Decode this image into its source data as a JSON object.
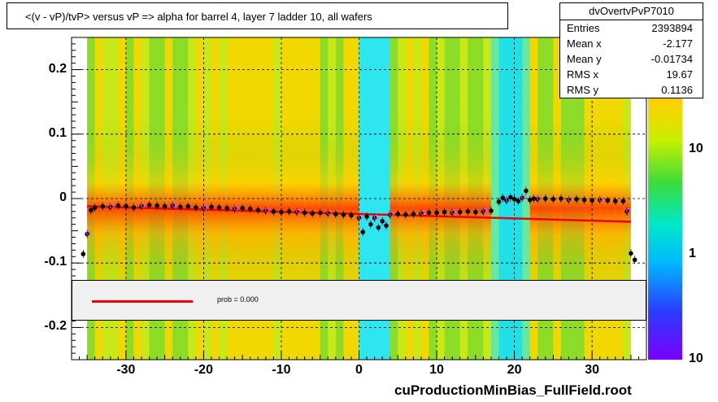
{
  "title": "<(v - vP)/tvP> versus   vP => alpha for barrel 4, layer 7 ladder 10, all wafers",
  "stats": {
    "name": "dvOvertvPvP7010",
    "rows": [
      {
        "key": "Entries",
        "value": "2393894"
      },
      {
        "key": "Mean x",
        "value": "-2.177"
      },
      {
        "key": "Mean y",
        "value": "-0.01734"
      },
      {
        "key": "RMS x",
        "value": "19.67"
      },
      {
        "key": "RMS y",
        "value": "0.1136"
      }
    ]
  },
  "fit": {
    "label": "prob = 0.000",
    "color": "#ee0000"
  },
  "footer": "cuProductionMinBias_FullField.root",
  "colors": {
    "fit_line": "#ee0000",
    "points": "#000000",
    "open_points": "#ff44ff"
  },
  "chart_data": {
    "type": "heatmap",
    "title": "<(v - vP)/tvP> versus   vP => alpha for barrel 4, layer 7 ladder 10, all wafers",
    "xlabel": "",
    "ylabel": "",
    "xlim": [
      -37,
      37
    ],
    "ylim": [
      -0.25,
      0.25
    ],
    "x_ticks": [
      "-30",
      "-20",
      "-10",
      "0",
      "10",
      "20",
      "30"
    ],
    "y_ticks": [
      "0.2",
      "0.1",
      "0",
      "-0.1",
      "-0.2"
    ],
    "z_ticks": [
      "10",
      "1",
      "10"
    ],
    "z_scale": "log",
    "grid": true,
    "profile_points": [
      {
        "x": -35.5,
        "y": -0.086
      },
      {
        "x": -35,
        "y": -0.055
      },
      {
        "x": -34.5,
        "y": -0.018
      },
      {
        "x": -34,
        "y": -0.014
      },
      {
        "x": -33,
        "y": -0.012
      },
      {
        "x": -32,
        "y": -0.013
      },
      {
        "x": -31,
        "y": -0.011
      },
      {
        "x": -30,
        "y": -0.012
      },
      {
        "x": -29,
        "y": -0.014
      },
      {
        "x": -28,
        "y": -0.012
      },
      {
        "x": -27,
        "y": -0.01
      },
      {
        "x": -26,
        "y": -0.011
      },
      {
        "x": -25,
        "y": -0.012
      },
      {
        "x": -24,
        "y": -0.011
      },
      {
        "x": -23,
        "y": -0.013
      },
      {
        "x": -22,
        "y": -0.012
      },
      {
        "x": -21,
        "y": -0.014
      },
      {
        "x": -20,
        "y": -0.015
      },
      {
        "x": -19,
        "y": -0.013
      },
      {
        "x": -18,
        "y": -0.014
      },
      {
        "x": -17,
        "y": -0.015
      },
      {
        "x": -16,
        "y": -0.016
      },
      {
        "x": -15,
        "y": -0.015
      },
      {
        "x": -14,
        "y": -0.016
      },
      {
        "x": -13,
        "y": -0.018
      },
      {
        "x": -12,
        "y": -0.019
      },
      {
        "x": -11,
        "y": -0.02
      },
      {
        "x": -10,
        "y": -0.021
      },
      {
        "x": -9,
        "y": -0.02
      },
      {
        "x": -8,
        "y": -0.021
      },
      {
        "x": -7,
        "y": -0.022
      },
      {
        "x": -6,
        "y": -0.023
      },
      {
        "x": -5,
        "y": -0.022
      },
      {
        "x": -4,
        "y": -0.023
      },
      {
        "x": -3,
        "y": -0.024
      },
      {
        "x": -2,
        "y": -0.025
      },
      {
        "x": -1,
        "y": -0.026
      },
      {
        "x": 0,
        "y": -0.03
      },
      {
        "x": 0.5,
        "y": -0.052
      },
      {
        "x": 1,
        "y": -0.028
      },
      {
        "x": 1.5,
        "y": -0.04
      },
      {
        "x": 2,
        "y": -0.03
      },
      {
        "x": 2.5,
        "y": -0.045
      },
      {
        "x": 3,
        "y": -0.035
      },
      {
        "x": 3.5,
        "y": -0.042
      },
      {
        "x": 4,
        "y": -0.025
      },
      {
        "x": 5,
        "y": -0.024
      },
      {
        "x": 6,
        "y": -0.025
      },
      {
        "x": 7,
        "y": -0.024
      },
      {
        "x": 8,
        "y": -0.023
      },
      {
        "x": 9,
        "y": -0.022
      },
      {
        "x": 10,
        "y": -0.022
      },
      {
        "x": 11,
        "y": -0.021
      },
      {
        "x": 12,
        "y": -0.022
      },
      {
        "x": 13,
        "y": -0.021
      },
      {
        "x": 14,
        "y": -0.02
      },
      {
        "x": 15,
        "y": -0.021
      },
      {
        "x": 16,
        "y": -0.02
      },
      {
        "x": 17,
        "y": -0.019
      },
      {
        "x": 18,
        "y": -0.005
      },
      {
        "x": 18.5,
        "y": 0.001
      },
      {
        "x": 19,
        "y": -0.003
      },
      {
        "x": 19.5,
        "y": 0.002
      },
      {
        "x": 20,
        "y": -0.001
      },
      {
        "x": 20.5,
        "y": -0.004
      },
      {
        "x": 21,
        "y": 0.001
      },
      {
        "x": 21.5,
        "y": 0.012
      },
      {
        "x": 22,
        "y": -0.002
      },
      {
        "x": 22.5,
        "y": 0.0
      },
      {
        "x": 23,
        "y": -0.001
      },
      {
        "x": 24,
        "y": 0.0
      },
      {
        "x": 25,
        "y": -0.001
      },
      {
        "x": 26,
        "y": 0.0
      },
      {
        "x": 27,
        "y": -0.002
      },
      {
        "x": 28,
        "y": -0.001
      },
      {
        "x": 29,
        "y": -0.002
      },
      {
        "x": 30,
        "y": -0.003
      },
      {
        "x": 31,
        "y": -0.002
      },
      {
        "x": 32,
        "y": -0.003
      },
      {
        "x": 33,
        "y": -0.004
      },
      {
        "x": 34,
        "y": -0.004
      },
      {
        "x": 34.5,
        "y": -0.02
      },
      {
        "x": 35,
        "y": -0.085
      },
      {
        "x": 35.5,
        "y": -0.095
      }
    ],
    "fit_line": {
      "x": [
        -35,
        35
      ],
      "y": [
        -0.012,
        -0.036
      ]
    }
  }
}
